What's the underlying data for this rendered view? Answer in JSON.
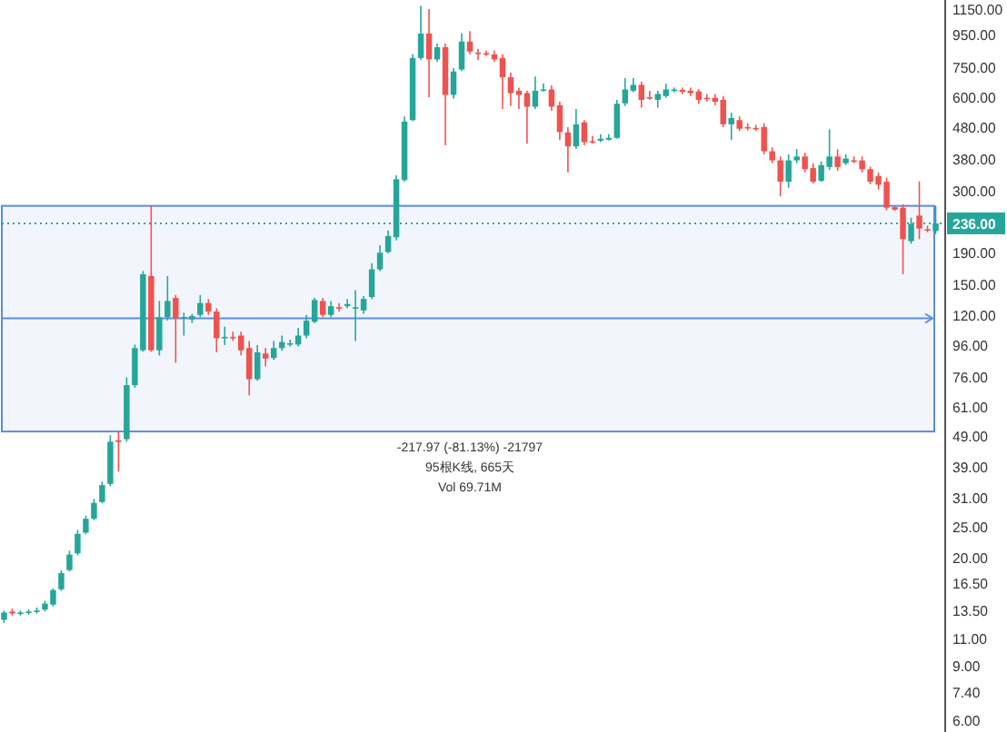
{
  "chart_data": {
    "type": "candlestick",
    "categories": [
      null,
      null,
      null,
      null,
      null,
      null,
      null,
      null,
      null,
      null,
      null,
      null,
      null,
      null,
      null,
      null,
      null,
      null,
      null,
      null,
      null,
      null,
      null,
      null,
      null,
      null,
      null,
      null,
      null,
      null,
      null,
      null,
      null,
      null,
      null,
      null,
      null,
      null,
      null,
      null,
      null,
      null,
      null,
      null,
      null,
      null,
      null,
      null,
      null,
      null,
      null,
      null,
      null,
      null,
      null,
      null,
      null,
      null,
      null,
      null,
      null,
      null,
      null,
      null,
      null,
      null,
      null,
      null,
      null,
      null,
      null,
      null,
      null,
      null,
      null,
      null,
      null,
      null,
      null,
      null,
      null,
      null,
      null,
      null,
      null,
      null,
      null,
      null,
      null,
      null,
      null,
      null,
      null,
      null,
      null,
      null,
      null,
      null,
      null,
      null,
      null,
      null,
      null,
      null,
      null,
      null,
      null,
      null,
      null,
      null,
      null,
      null,
      null,
      null,
      null
    ],
    "ohlc": [
      [
        12.6,
        13.5,
        12.3,
        13.3
      ],
      [
        13.4,
        13.7,
        13.0,
        13.2
      ],
      [
        13.2,
        13.5,
        13.0,
        13.3
      ],
      [
        13.3,
        13.6,
        13.1,
        13.4
      ],
      [
        13.4,
        13.8,
        13.2,
        13.5
      ],
      [
        13.6,
        14.5,
        13.4,
        14.2
      ],
      [
        14.1,
        15.9,
        13.9,
        15.7
      ],
      [
        15.8,
        18.2,
        15.6,
        17.8
      ],
      [
        18.2,
        21.0,
        18.0,
        20.4
      ],
      [
        20.6,
        24.5,
        20.3,
        23.8
      ],
      [
        24.0,
        27.2,
        23.7,
        26.6
      ],
      [
        26.6,
        30.8,
        26.3,
        29.9
      ],
      [
        30.1,
        35.0,
        29.8,
        34.1
      ],
      [
        34.4,
        49.3,
        33.8,
        47.0
      ],
      [
        47.5,
        50.7,
        37.7,
        46.9
      ],
      [
        47.9,
        75.6,
        47.0,
        71.4
      ],
      [
        71.4,
        96.4,
        70.0,
        93.9
      ],
      [
        92.4,
        166,
        91.4,
        162
      ],
      [
        160,
        268.7,
        91.4,
        92.4
      ],
      [
        92.4,
        133,
        88.9,
        118
      ],
      [
        118,
        160,
        115,
        133
      ],
      [
        136,
        139,
        84.3,
        117
      ],
      [
        117,
        122,
        103,
        118
      ],
      [
        116,
        121,
        113,
        119
      ],
      [
        120,
        139,
        118,
        131
      ],
      [
        131,
        135,
        120,
        123
      ],
      [
        123,
        126,
        91,
        101
      ],
      [
        101,
        110,
        96,
        102
      ],
      [
        102,
        106,
        99,
        101
      ],
      [
        103,
        106,
        89,
        92.4
      ],
      [
        93.9,
        99,
        66.2,
        74.6
      ],
      [
        74.6,
        96,
        73.7,
        91
      ],
      [
        90.2,
        94,
        82,
        86.9
      ],
      [
        87.3,
        99,
        86,
        93.9
      ],
      [
        93.9,
        103,
        92,
        98.2
      ],
      [
        96.4,
        100,
        95,
        97.3
      ],
      [
        96.4,
        109,
        95,
        103
      ],
      [
        103,
        120,
        101,
        115
      ],
      [
        114,
        136,
        113,
        134
      ],
      [
        133,
        136,
        118,
        120
      ],
      [
        120,
        133,
        118,
        128
      ],
      [
        127,
        131,
        123,
        126
      ],
      [
        128,
        135,
        126,
        130
      ],
      [
        126,
        144,
        99,
        127
      ],
      [
        124,
        138,
        121,
        135
      ],
      [
        137,
        176,
        135,
        168
      ],
      [
        168,
        201,
        166,
        190
      ],
      [
        191,
        224,
        189,
        215
      ],
      [
        213,
        337,
        208,
        327
      ],
      [
        325,
        520,
        321,
        501
      ],
      [
        506,
        823,
        503,
        801
      ],
      [
        801,
        1180,
        789,
        960
      ],
      [
        960,
        1150,
        600,
        793
      ],
      [
        793,
        891,
        779,
        868
      ],
      [
        868,
        891,
        420,
        610
      ],
      [
        610,
        744,
        593,
        725
      ],
      [
        736,
        963,
        728,
        905
      ],
      [
        905,
        977,
        823,
        840
      ],
      [
        834,
        857,
        789,
        828
      ],
      [
        830,
        846,
        812,
        825
      ],
      [
        823,
        846,
        779,
        793
      ],
      [
        801,
        823,
        550,
        695
      ],
      [
        695,
        719,
        562,
        618
      ],
      [
        629,
        644,
        550,
        610
      ],
      [
        618,
        629,
        425,
        559
      ],
      [
        559,
        699,
        550,
        629
      ],
      [
        633,
        663,
        625,
        635
      ],
      [
        635,
        654,
        542,
        559
      ],
      [
        565,
        580,
        437,
        464
      ],
      [
        462,
        481,
        344,
        417
      ],
      [
        417,
        550,
        409,
        491
      ],
      [
        498,
        506,
        420,
        430
      ],
      [
        433,
        450,
        425,
        431
      ],
      [
        435,
        456,
        430,
        441
      ],
      [
        438,
        456,
        435,
        444
      ],
      [
        444,
        588,
        441,
        571
      ],
      [
        573,
        690,
        562,
        635
      ],
      [
        629,
        690,
        622,
        657
      ],
      [
        657,
        672,
        555,
        588
      ],
      [
        600,
        629,
        588,
        598
      ],
      [
        588,
        629,
        555,
        614
      ],
      [
        605,
        663,
        597,
        635
      ],
      [
        633,
        644,
        622,
        635
      ],
      [
        633,
        644,
        614,
        624
      ],
      [
        629,
        644,
        605,
        618
      ],
      [
        626,
        637,
        571,
        588
      ],
      [
        597,
        614,
        580,
        592
      ],
      [
        597,
        614,
        565,
        580
      ],
      [
        588,
        605,
        481,
        491
      ],
      [
        491,
        535,
        437,
        514
      ],
      [
        506,
        520,
        467,
        475
      ],
      [
        481,
        495,
        469,
        478
      ],
      [
        478,
        489,
        467,
        475
      ],
      [
        481,
        495,
        393,
        402
      ],
      [
        402,
        414,
        368,
        376
      ],
      [
        376,
        387,
        288,
        321
      ],
      [
        321,
        393,
        307,
        376
      ],
      [
        376,
        409,
        368,
        387
      ],
      [
        387,
        398,
        344,
        352
      ],
      [
        355,
        368,
        317,
        321
      ],
      [
        323,
        373,
        321,
        363
      ],
      [
        358,
        473,
        350,
        387
      ],
      [
        387,
        408,
        348,
        358
      ],
      [
        368,
        393,
        363,
        381
      ],
      [
        376,
        387,
        368,
        375
      ],
      [
        376,
        387,
        344,
        352
      ],
      [
        352,
        359,
        315,
        321
      ],
      [
        335,
        344,
        303,
        314
      ],
      [
        321,
        331,
        260,
        265
      ],
      [
        266,
        268,
        259,
        261
      ],
      [
        265,
        272,
        162,
        210
      ],
      [
        207,
        246,
        203,
        235
      ],
      [
        250,
        322,
        210,
        227
      ],
      [
        226,
        232,
        221,
        225
      ],
      [
        223,
        269,
        218,
        236
      ]
    ],
    "colors": [
      "#26a69a",
      "#ef5350",
      "#26a69a",
      "#26a69a",
      "#26a69a",
      "#26a69a",
      "#26a69a",
      "#26a69a",
      "#26a69a",
      "#26a69a",
      "#26a69a",
      "#26a69a",
      "#26a69a",
      "#26a69a",
      "#ef5350",
      "#26a69a",
      "#26a69a",
      "#26a69a",
      "#ef5350",
      "#26a69a",
      "#26a69a",
      "#ef5350",
      "#26a69a",
      "#26a69a",
      "#26a69a",
      "#ef5350",
      "#ef5350",
      "#26a69a",
      "#ef5350",
      "#ef5350",
      "#ef5350",
      "#26a69a",
      "#ef5350",
      "#26a69a",
      "#26a69a",
      "#26a69a",
      "#26a69a",
      "#26a69a",
      "#26a69a",
      "#ef5350",
      "#26a69a",
      "#ef5350",
      "#26a69a",
      "#26a69a",
      "#26a69a",
      "#26a69a",
      "#26a69a",
      "#26a69a",
      "#26a69a",
      "#26a69a",
      "#26a69a",
      "#26a69a",
      "#ef5350",
      "#26a69a",
      "#ef5350",
      "#26a69a",
      "#26a69a",
      "#ef5350",
      "#ef5350",
      "#ef5350",
      "#ef5350",
      "#ef5350",
      "#ef5350",
      "#ef5350",
      "#ef5350",
      "#26a69a",
      "#26a69a",
      "#ef5350",
      "#ef5350",
      "#ef5350",
      "#26a69a",
      "#ef5350",
      "#ef5350",
      "#26a69a",
      "#26a69a",
      "#26a69a",
      "#26a69a",
      "#26a69a",
      "#ef5350",
      "#ef5350",
      "#26a69a",
      "#26a69a",
      "#26a69a",
      "#ef5350",
      "#ef5350",
      "#ef5350",
      "#ef5350",
      "#ef5350",
      "#ef5350",
      "#26a69a",
      "#ef5350",
      "#ef5350",
      "#ef5350",
      "#ef5350",
      "#ef5350",
      "#ef5350",
      "#26a69a",
      "#26a69a",
      "#ef5350",
      "#ef5350",
      "#26a69a",
      "#26a69a",
      "#ef5350",
      "#26a69a",
      "#ef5350",
      "#ef5350",
      "#ef5350",
      "#ef5350",
      "#ef5350",
      "#ef5350",
      "#ef5350",
      "#26a69a",
      "#ef5350",
      "#ef5350",
      "#26a69a"
    ],
    "ylim": [
      5.5,
      1230
    ],
    "log": true,
    "yticks": [
      {
        "value": 1150,
        "label": "1150.00"
      },
      {
        "value": 950,
        "label": "950.00"
      },
      {
        "value": 750,
        "label": "750.00"
      },
      {
        "value": 600,
        "label": "600.00"
      },
      {
        "value": 480,
        "label": "480.00"
      },
      {
        "value": 380,
        "label": "380.00"
      },
      {
        "value": 300,
        "label": "300.00"
      },
      {
        "value": 190,
        "label": "190.00"
      },
      {
        "value": 150,
        "label": "150.00"
      },
      {
        "value": 120,
        "label": "120.00"
      },
      {
        "value": 96,
        "label": "96.00"
      },
      {
        "value": 76,
        "label": "76.00"
      },
      {
        "value": 61,
        "label": "61.00"
      },
      {
        "value": 49,
        "label": "49.00"
      },
      {
        "value": 39,
        "label": "39.00"
      },
      {
        "value": 31,
        "label": "31.00"
      },
      {
        "value": 25,
        "label": "25.00"
      },
      {
        "value": 20,
        "label": "20.00"
      },
      {
        "value": 16.5,
        "label": "16.50"
      },
      {
        "value": 13.5,
        "label": "13.50"
      },
      {
        "value": 11,
        "label": "11.00"
      },
      {
        "value": 9,
        "label": "9.00"
      },
      {
        "value": 7.4,
        "label": "7.40"
      },
      {
        "value": 6,
        "label": "6.00"
      }
    ],
    "tick_labels": "y",
    "bands": [
      {
        "axis": "y",
        "from": 50.69,
        "to": 268.66,
        "color": "#5b8ddb"
      }
    ],
    "ref_lines": [
      {
        "axis": "y",
        "value": 117,
        "color": "#5b8ddb"
      },
      {
        "axis": "y",
        "value": 236,
        "label": "236.00",
        "color": "#26a69a",
        "line_style": "dotted"
      }
    ],
    "annotations": [
      "-217.97 (-81.13%) -21797",
      "95根K线, 665天",
      "Vol 69.71M"
    ]
  }
}
